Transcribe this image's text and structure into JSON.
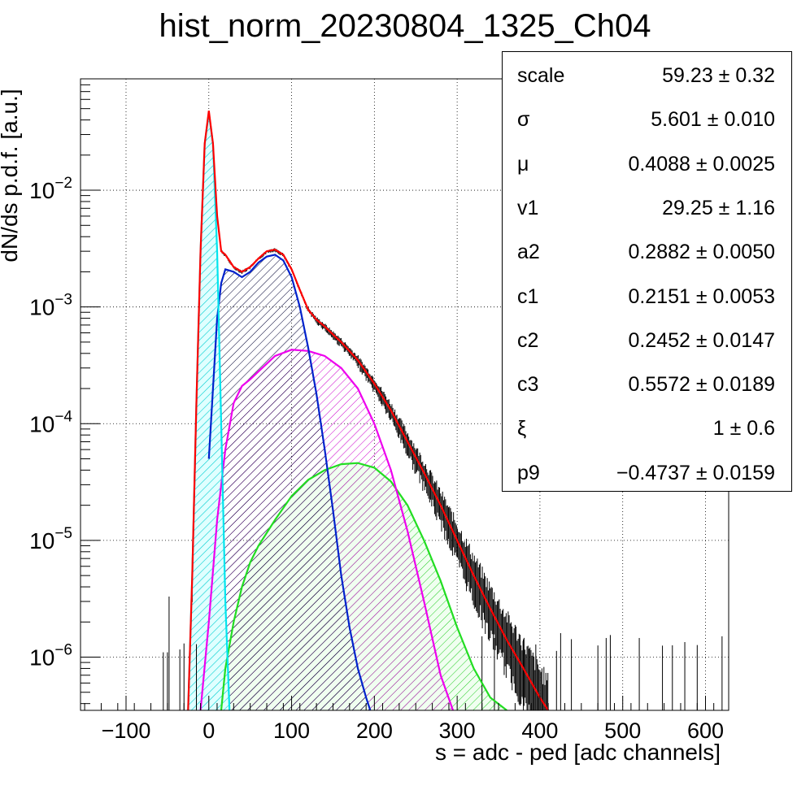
{
  "chart_data": {
    "type": "line",
    "title": "hist_norm_20230804_1325_Ch04",
    "xlabel": "s = adc - ped [adc channels]",
    "ylabel": "dN/ds p.d.f. [a.u.]",
    "xlim": [
      -155,
      628
    ],
    "ylim": [
      3.5e-07,
      0.09
    ],
    "yscale": "log",
    "grid": true,
    "x_ticks": [
      "−100",
      "0",
      "100",
      "200",
      "300",
      "400",
      "500",
      "600"
    ],
    "x_tick_values": [
      -100,
      0,
      100,
      200,
      300,
      400,
      500,
      600
    ],
    "y_ticks": [
      {
        "base": "10",
        "exp": "−6",
        "value": 1e-06
      },
      {
        "base": "10",
        "exp": "−5",
        "value": 1e-05
      },
      {
        "base": "10",
        "exp": "−4",
        "value": 0.0001
      },
      {
        "base": "10",
        "exp": "−3",
        "value": 0.001
      },
      {
        "base": "10",
        "exp": "−2",
        "value": 0.01
      }
    ],
    "series": [
      {
        "color": "#ff0000",
        "fill": "none",
        "x": [
          -25,
          -20,
          -15,
          -10,
          -5,
          0,
          5,
          10,
          15,
          20,
          30,
          40,
          50,
          60,
          70,
          80,
          90,
          100,
          110,
          120,
          130,
          140,
          150,
          160,
          180,
          200,
          220,
          240,
          260,
          280,
          300,
          320,
          340,
          360,
          380,
          400,
          410
        ],
        "y": [
          3.5e-07,
          5e-06,
          0.00015,
          0.003,
          0.025,
          0.048,
          0.025,
          0.006,
          0.003,
          0.0028,
          0.0022,
          0.002,
          0.0022,
          0.0026,
          0.003,
          0.0031,
          0.0028,
          0.0021,
          0.0014,
          0.00095,
          0.00078,
          0.00068,
          0.00058,
          0.0005,
          0.00035,
          0.00022,
          0.00013,
          7e-05,
          3.8e-05,
          2e-05,
          1e-05,
          5e-06,
          2.6e-06,
          1.4e-06,
          8e-07,
          4.5e-07,
          3.5e-07
        ]
      },
      {
        "color": "#00e5ee",
        "fill": "#00ced1",
        "x": [
          -25,
          -20,
          -15,
          -10,
          -5,
          0,
          5,
          10,
          15,
          20,
          25
        ],
        "y": [
          3.5e-07,
          5e-06,
          0.00015,
          0.003,
          0.025,
          0.046,
          0.025,
          0.003,
          0.0001,
          3e-06,
          3.5e-07
        ]
      },
      {
        "color": "#0022cc",
        "fill": "#000033",
        "x": [
          0,
          5,
          10,
          15,
          20,
          30,
          40,
          50,
          60,
          70,
          80,
          90,
          100,
          110,
          120,
          130,
          140,
          150,
          160,
          170,
          180,
          190,
          195
        ],
        "y": [
          5e-05,
          0.0002,
          0.0008,
          0.0016,
          0.0021,
          0.002,
          0.0018,
          0.002,
          0.0024,
          0.0027,
          0.0028,
          0.0025,
          0.0018,
          0.001,
          0.00045,
          0.00018,
          6e-05,
          1.8e-05,
          5e-06,
          1.8e-06,
          8e-07,
          4.5e-07,
          3.5e-07
        ]
      },
      {
        "color": "#ee00ee",
        "fill": "#cc00cc",
        "x": [
          -10,
          0,
          10,
          20,
          30,
          40,
          50,
          60,
          80,
          100,
          120,
          140,
          160,
          180,
          200,
          220,
          240,
          260,
          280,
          295
        ],
        "y": [
          3.5e-07,
          2e-06,
          1.5e-05,
          6e-05,
          0.00015,
          0.00021,
          0.00024,
          0.00028,
          0.00038,
          0.00043,
          0.00042,
          0.00038,
          0.0003,
          0.0002,
          0.0001,
          4e-05,
          1.2e-05,
          3e-06,
          7e-07,
          3.5e-07
        ]
      },
      {
        "color": "#22dd22",
        "fill": "#22cc22",
        "x": [
          15,
          20,
          30,
          40,
          50,
          60,
          80,
          100,
          120,
          140,
          160,
          180,
          200,
          220,
          240,
          260,
          280,
          300,
          320,
          340,
          360
        ],
        "y": [
          3.5e-07,
          8e-07,
          2e-06,
          4e-06,
          6.5e-06,
          9e-06,
          1.5e-05,
          2.4e-05,
          3.3e-05,
          4e-05,
          4.5e-05,
          4.6e-05,
          4.2e-05,
          3.2e-05,
          2e-05,
          1e-05,
          4.5e-06,
          1.8e-06,
          8e-07,
          4.5e-07,
          3.5e-07
        ]
      }
    ]
  },
  "stats": [
    {
      "name": "scale",
      "value": "59.23 ± 0.32"
    },
    {
      "name": "σ",
      "value": "5.601 ± 0.010"
    },
    {
      "name": "μ",
      "value": "0.4088 ± 0.0025"
    },
    {
      "name": "v1",
      "value": "29.25 ± 1.16"
    },
    {
      "name": "a2",
      "value": "0.2882 ± 0.0050"
    },
    {
      "name": "c1",
      "value": "0.2151 ± 0.0053"
    },
    {
      "name": "c2",
      "value": "0.2452 ± 0.0147"
    },
    {
      "name": "c3",
      "value": "0.5572 ± 0.0189"
    },
    {
      "name": "ξ",
      "value": "1 ± 0.6"
    },
    {
      "name": "p9",
      "value": "−0.4737 ± 0.0159"
    }
  ]
}
